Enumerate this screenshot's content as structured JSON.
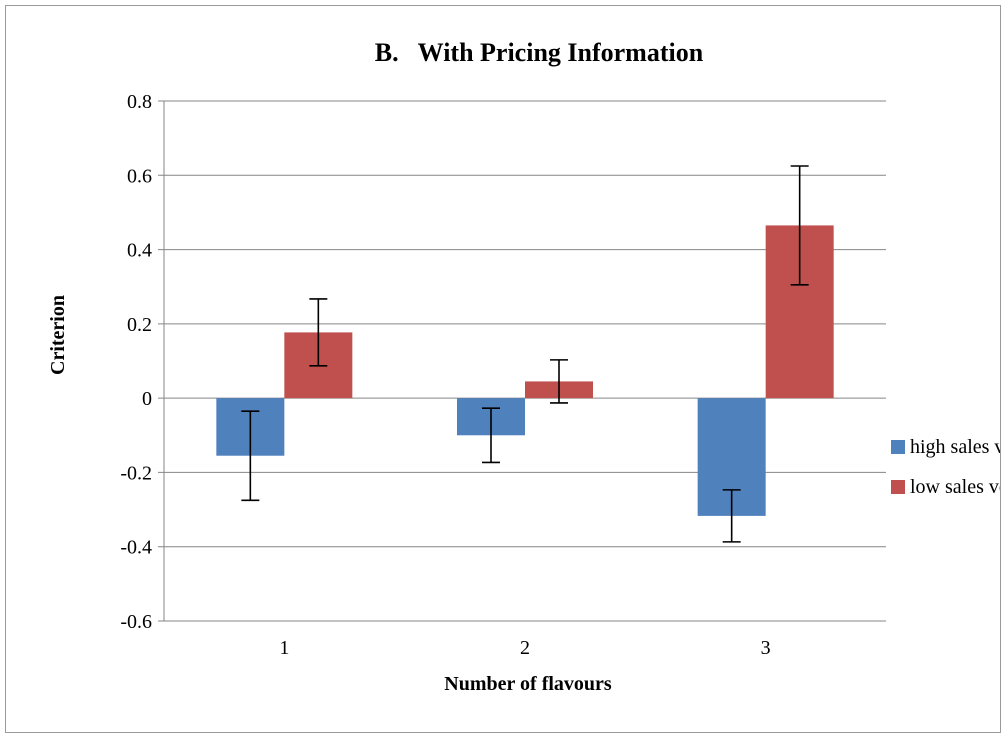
{
  "chart_data": {
    "type": "bar",
    "title": "B.   With Pricing Information",
    "xlabel": "Number of flavours",
    "ylabel": "Criterion",
    "categories": [
      "1",
      "2",
      "3"
    ],
    "ylim": [
      -0.6,
      0.8
    ],
    "yticks": [
      0.8,
      0.6,
      0.4,
      0.2,
      0,
      -0.2,
      -0.4,
      -0.6
    ],
    "ytick_labels": [
      "0.8",
      "0.6",
      "0.4",
      "0.2",
      "0",
      "-0.2",
      "-0.4",
      "-0.6"
    ],
    "grid": "horizontal",
    "legend_position": "right",
    "series": [
      {
        "name": "high sales volume",
        "color": "#4f81bd",
        "values": [
          -0.155,
          -0.1,
          -0.317
        ],
        "error": [
          0.12,
          0.073,
          0.07
        ]
      },
      {
        "name": "low sales volumes",
        "color": "#c0504d",
        "values": [
          0.177,
          0.045,
          0.465
        ],
        "error": [
          0.09,
          0.058,
          0.16
        ]
      }
    ]
  }
}
